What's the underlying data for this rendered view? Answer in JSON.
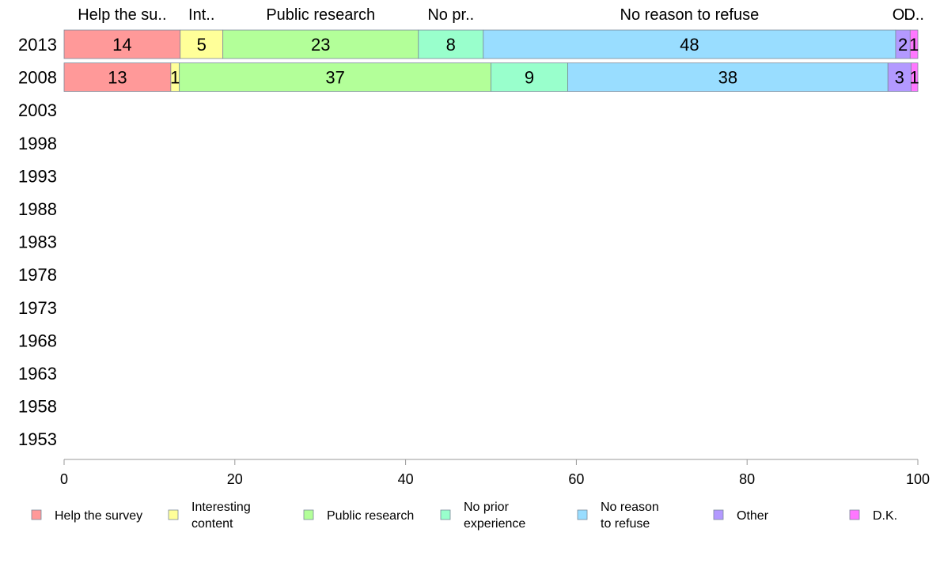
{
  "chart_data": {
    "type": "bar",
    "orientation": "horizontal",
    "stacked": true,
    "categories": [
      "2013",
      "2008",
      "2003",
      "1998",
      "1993",
      "1988",
      "1983",
      "1978",
      "1973",
      "1968",
      "1963",
      "1958",
      "1953"
    ],
    "series": [
      {
        "name": "Help the survey",
        "legend": [
          "Help the survey"
        ],
        "top_label": "Help the su..",
        "color": "#FF9999",
        "values": [
          14,
          13,
          null,
          null,
          null,
          null,
          null,
          null,
          null,
          null,
          null,
          null,
          null
        ]
      },
      {
        "name": "Interesting content",
        "legend": [
          "Interesting",
          "content"
        ],
        "top_label": "Int..",
        "color": "#FFFF99",
        "values": [
          5,
          1,
          null,
          null,
          null,
          null,
          null,
          null,
          null,
          null,
          null,
          null,
          null
        ]
      },
      {
        "name": "Public research",
        "legend": [
          "Public research"
        ],
        "top_label": "Public research",
        "color": "#B3FF99",
        "values": [
          23,
          37,
          null,
          null,
          null,
          null,
          null,
          null,
          null,
          null,
          null,
          null,
          null
        ]
      },
      {
        "name": "No prior experience",
        "legend": [
          "No prior",
          "experience"
        ],
        "top_label": "No pr..",
        "color": "#99FFCC",
        "values": [
          8,
          9,
          null,
          null,
          null,
          null,
          null,
          null,
          null,
          null,
          null,
          null,
          null
        ]
      },
      {
        "name": "No reason to refuse",
        "legend": [
          "No reason",
          "to refuse"
        ],
        "top_label": "No reason to refuse",
        "color": "#99DDFF",
        "values": [
          48,
          38,
          null,
          null,
          null,
          null,
          null,
          null,
          null,
          null,
          null,
          null,
          null
        ]
      },
      {
        "name": "Other",
        "legend": [
          "Other"
        ],
        "top_label": "O..",
        "color": "#B399FF",
        "values": [
          2,
          3,
          null,
          null,
          null,
          null,
          null,
          null,
          null,
          null,
          null,
          null,
          null
        ]
      },
      {
        "name": "D.K.",
        "legend": [
          "D.K."
        ],
        "top_label": "D..",
        "color": "#FF77FF",
        "values": [
          1,
          1,
          null,
          null,
          null,
          null,
          null,
          null,
          null,
          null,
          null,
          null,
          null
        ]
      }
    ],
    "bar_extents_2013": [
      13.6,
      5.0,
      22.9,
      7.6,
      48.3,
      1.7,
      0.9
    ],
    "bar_extents_2008": [
      12.5,
      1.0,
      36.5,
      9.0,
      37.5,
      2.7,
      0.8
    ],
    "xlim": [
      0,
      100
    ],
    "xticks": [
      0,
      20,
      40,
      60,
      80,
      100
    ],
    "title": "",
    "xlabel": "",
    "ylabel": "",
    "grid": false,
    "legend_position": "bottom"
  }
}
